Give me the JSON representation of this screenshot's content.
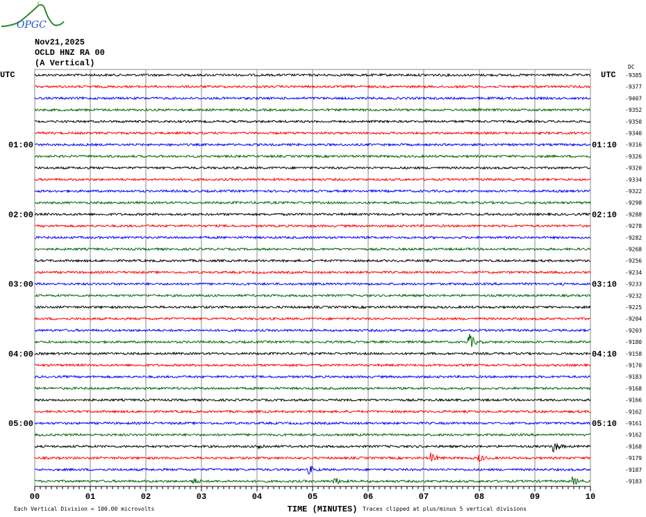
{
  "header": {
    "logo_text": "OPGC",
    "date": "Nov21,2025",
    "station": "OCLD HNZ RA 00",
    "component": "(A Vertical)"
  },
  "chart_data": {
    "type": "line",
    "subtype": "helicorder",
    "xlabel": "TIME (MINUTES)",
    "x_ticks": [
      "00",
      "01",
      "02",
      "03",
      "04",
      "05",
      "06",
      "07",
      "08",
      "09",
      "10"
    ],
    "xlim": [
      0,
      10
    ],
    "grid": true,
    "left_axis_title": "UTC",
    "right_axis_title": "UTC",
    "left_time_labels": [
      {
        "row": 6,
        "label": "01:00"
      },
      {
        "row": 12,
        "label": "02:00"
      },
      {
        "row": 18,
        "label": "03:00"
      },
      {
        "row": 24,
        "label": "04:00"
      },
      {
        "row": 30,
        "label": "05:00"
      }
    ],
    "right_time_labels": [
      {
        "row": 6,
        "label": "01:10"
      },
      {
        "row": 12,
        "label": "02:10"
      },
      {
        "row": 18,
        "label": "03:10"
      },
      {
        "row": 24,
        "label": "04:10"
      },
      {
        "row": 30,
        "label": "05:10"
      }
    ],
    "dc_label": "DC",
    "dc_offsets": [
      -9385,
      -9377,
      -9407,
      -9352,
      -9350,
      -9340,
      -9316,
      -9326,
      -9320,
      -9334,
      -9322,
      -9298,
      -9288,
      -9278,
      -9282,
      -9268,
      -9256,
      -9234,
      -9233,
      -9232,
      -9225,
      -9204,
      -9203,
      -9180,
      -9158,
      -9170,
      -9183,
      -9168,
      -9166,
      -9162,
      -9161,
      -9162,
      -9168,
      -9179,
      -9187,
      -9183
    ],
    "trace_colors": [
      "#000000",
      "#ff0000",
      "#0000ff",
      "#006400"
    ],
    "events": [
      {
        "row": 23,
        "minute": 7.82,
        "amplitude": 3.0
      },
      {
        "row": 32,
        "minute": 9.35,
        "amplitude": 2.0
      },
      {
        "row": 32,
        "minute": 4.05,
        "amplitude": 1.0
      },
      {
        "row": 33,
        "minute": 7.15,
        "amplitude": 1.6
      },
      {
        "row": 33,
        "minute": 8.0,
        "amplitude": 1.2
      },
      {
        "row": 34,
        "minute": 4.95,
        "amplitude": 1.3
      },
      {
        "row": 35,
        "minute": 5.4,
        "amplitude": 1.3
      },
      {
        "row": 35,
        "minute": 9.7,
        "amplitude": 1.3
      },
      {
        "row": 35,
        "minute": 2.85,
        "amplitude": 1.1
      }
    ],
    "footer_left": "Each Vertical Division =  100.00 microvolts",
    "footer_right": "Traces clipped at plus/minus 5 vertical divisions"
  }
}
